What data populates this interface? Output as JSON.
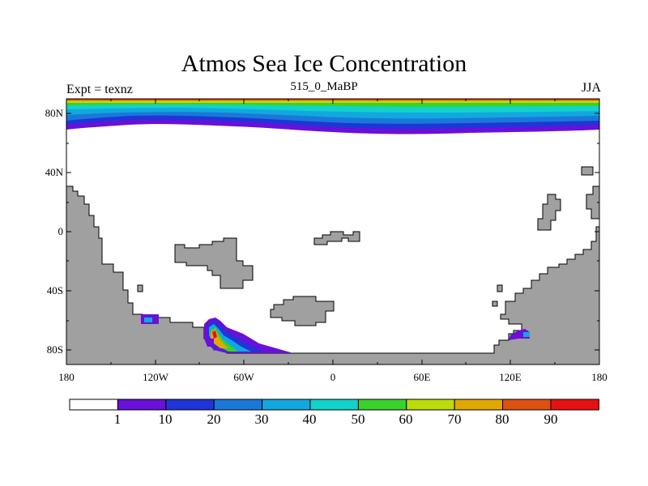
{
  "title": "Atmos Sea Ice Concentration",
  "subtitle": "515_0_MaBP",
  "left_label": "Expt = texnz",
  "right_label": "JJA",
  "y_ticks": [
    "80N",
    "40N",
    "0",
    "40S",
    "80S"
  ],
  "x_ticks": [
    "180",
    "120W",
    "60W",
    "0",
    "60E",
    "120E",
    "180"
  ],
  "colorbar": {
    "labels": [
      "1",
      "10",
      "20",
      "30",
      "40",
      "50",
      "60",
      "70",
      "80",
      "90"
    ],
    "colors": [
      "#ffffff",
      "#6a10d8",
      "#1f35d8",
      "#1a78d8",
      "#11a8e0",
      "#12d2cc",
      "#38d22a",
      "#bcdc08",
      "#e0a800",
      "#e05010",
      "#e81010"
    ]
  },
  "colors": {
    "land": "#a0a0a0",
    "ocean": "#ffffff"
  }
}
